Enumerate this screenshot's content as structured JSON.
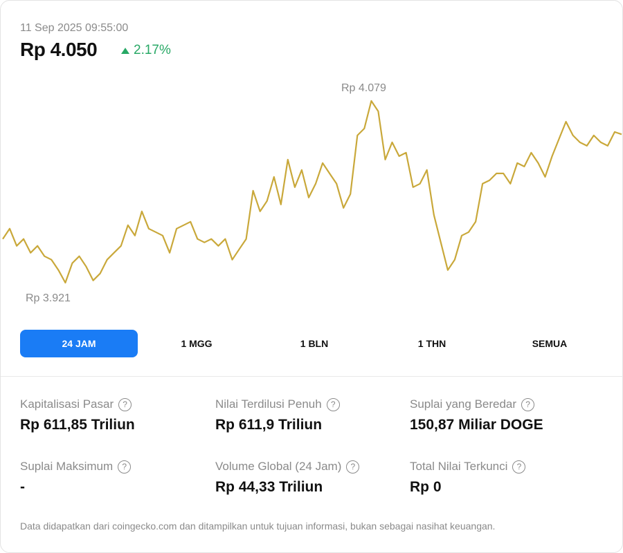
{
  "header": {
    "timestamp": "11 Sep 2025 09:55:00",
    "price": "Rp 4.050",
    "change": "2.17%",
    "change_color": "#27a865",
    "direction_icon": "triangle-up-icon"
  },
  "chart_labels": {
    "high": "Rp 4.079",
    "low": "Rp 3.921"
  },
  "chart_data": {
    "type": "line",
    "title": "",
    "line_color": "#c9a83a",
    "ylim": [
      3921,
      4079
    ],
    "values": [
      3959,
      3968,
      3953,
      3959,
      3947,
      3953,
      3944,
      3941,
      3932,
      3921,
      3938,
      3944,
      3935,
      3923,
      3929,
      3941,
      3947,
      3953,
      3971,
      3962,
      3983,
      3968,
      3965,
      3962,
      3947,
      3968,
      3971,
      3974,
      3959,
      3956,
      3959,
      3953,
      3959,
      3941,
      3950,
      3959,
      4001,
      3983,
      3992,
      4013,
      3989,
      4028,
      4004,
      4019,
      3995,
      4007,
      4025,
      4016,
      4007,
      3986,
      3998,
      4049,
      4055,
      4079,
      4070,
      4028,
      4043,
      4031,
      4034,
      4004,
      4007,
      4019,
      3980,
      3956,
      3932,
      3941,
      3962,
      3965,
      3974,
      4007,
      4010,
      4016,
      4016,
      4007,
      4025,
      4022,
      4034,
      4025,
      4013,
      4031,
      4046,
      4061,
      4049,
      4043,
      4040,
      4049,
      4043,
      4040,
      4052,
      4050
    ]
  },
  "tabs": [
    {
      "label": "24 JAM",
      "active": true
    },
    {
      "label": "1 MGG"
    },
    {
      "label": "1 BLN"
    },
    {
      "label": "1 THN"
    },
    {
      "label": "SEMUA"
    }
  ],
  "stats": [
    {
      "label": "Kapitalisasi Pasar",
      "value": "Rp 611,85 Triliun"
    },
    {
      "label": "Nilai Terdilusi Penuh",
      "value": "Rp 611,9 Triliun"
    },
    {
      "label": "Suplai yang Beredar",
      "value": "150,87 Miliar DOGE"
    },
    {
      "label": "Suplai Maksimum",
      "value": "-"
    },
    {
      "label": "Volume Global (24 Jam)",
      "value": "Rp 44,33 Triliun"
    },
    {
      "label": "Total Nilai Terkunci",
      "value": "Rp 0"
    }
  ],
  "help_icon_text": "?",
  "footer": "Data didapatkan dari coingecko.com dan ditampilkan untuk tujuan informasi, bukan sebagai nasihat keuangan."
}
